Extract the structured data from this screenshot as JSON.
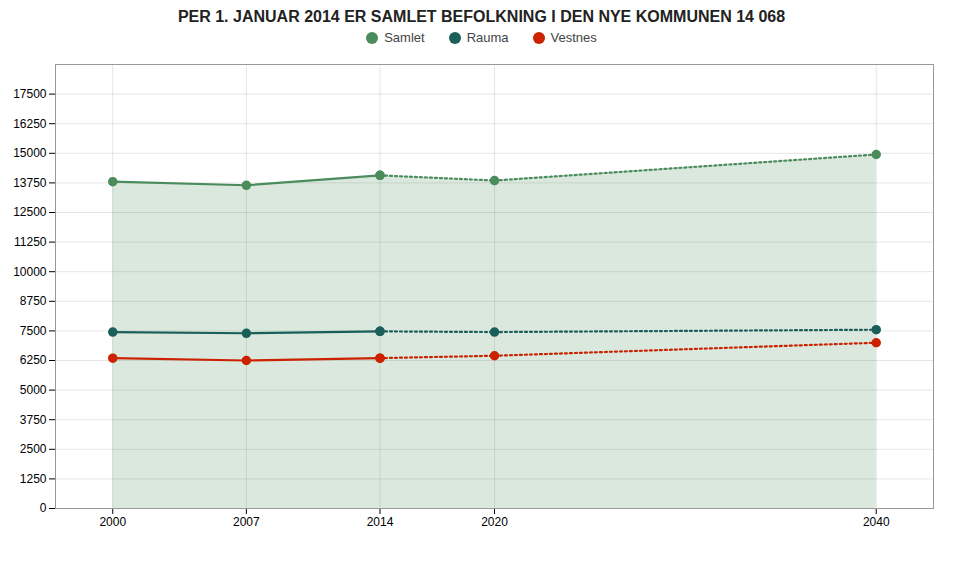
{
  "chart_data": {
    "type": "line",
    "title": "PER 1. JANUAR 2014 ER SAMLET BEFOLKNING I DEN NYE KOMMUNEN 14 068",
    "x": [
      2000,
      2007,
      2014,
      2020,
      2040
    ],
    "series": [
      {
        "name": "Samlet",
        "color": "#4a8c5c",
        "line_style": "solid",
        "marker": "circle",
        "values": [
          13800,
          13650,
          14068,
          null,
          null
        ]
      },
      {
        "name": "Rauma",
        "color": "#1a5f5a",
        "line_style": "solid",
        "marker": "circle",
        "values": [
          7450,
          7400,
          7480,
          null,
          null
        ]
      },
      {
        "name": "Vestnes",
        "color": "#cc2200",
        "line_style": "solid",
        "marker": "circle",
        "values": [
          6350,
          6250,
          6350,
          null,
          null
        ]
      },
      {
        "name": "Samlet",
        "color": "#4a8c5c",
        "line_style": "dotted",
        "marker": "circle",
        "values": [
          null,
          null,
          14068,
          13850,
          14950
        ]
      },
      {
        "name": "Rauma",
        "color": "#1a5f5a",
        "line_style": "dotted",
        "marker": "circle",
        "values": [
          null,
          null,
          7480,
          7450,
          7550
        ]
      },
      {
        "name": "Vestnes",
        "color": "#cc2200",
        "line_style": "dotted",
        "marker": "circle",
        "values": [
          null,
          null,
          6350,
          6450,
          7000
        ]
      }
    ],
    "xlim": [
      1997,
      2043
    ],
    "xticks": [
      2000,
      2007,
      2014,
      2020,
      2040
    ],
    "ylim": [
      0,
      18750
    ],
    "yticks": [
      0,
      1250,
      2500,
      3750,
      5000,
      6250,
      7500,
      8750,
      10000,
      11250,
      12500,
      13750,
      15000,
      16250,
      17500
    ],
    "grid": true,
    "legend": "top"
  }
}
